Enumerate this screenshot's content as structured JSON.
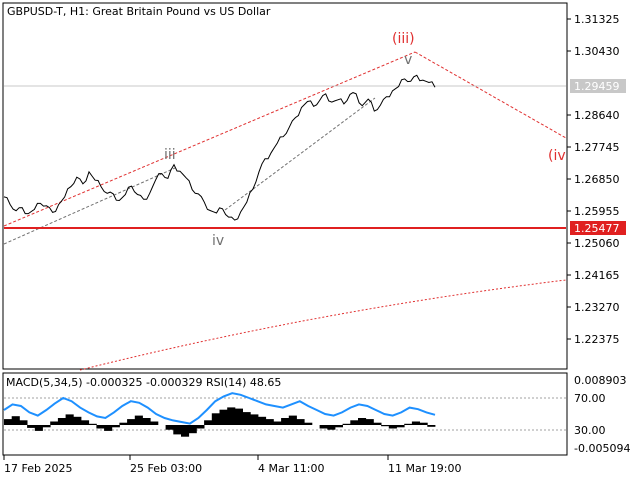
{
  "header": {
    "title": "GBPUSD-T, H1:  Great Britain Pound vs US Dollar"
  },
  "indicator": {
    "label": "MACD(5,34,5) -0.000325 -0.000329 RSI(14) 48.65"
  },
  "colors": {
    "price_line": "#000000",
    "support_line": "#e02020",
    "channel_red": "#e03030",
    "channel_gray": "#707070",
    "current_price_box": "#c8c8c8",
    "support_box": "#e02020",
    "rsi_line": "#1e90ff",
    "macd_hist": "#000000"
  },
  "chart_data": {
    "type": "line",
    "title": "GBPUSD-T, H1:  Great Britain Pound vs US Dollar",
    "xlabel": "",
    "ylabel": "",
    "ylim": [
      1.2175,
      1.3185
    ],
    "y_ticks": [
      "1.31325",
      "1.30430",
      "1.28640",
      "1.27745",
      "1.26850",
      "1.25955",
      "1.25060",
      "1.24165",
      "1.23270",
      "1.22375"
    ],
    "x_ticks": [
      "17 Feb 2025",
      "25 Feb 03:00",
      "4 Mar 11:00",
      "11 Mar 19:00"
    ],
    "current_price": "1.29459",
    "support_level": "1.25477",
    "wave_labels": [
      "(iii)",
      "v",
      "iii",
      "iv",
      "(iv"
    ],
    "price_series": [
      1.263,
      1.2612,
      1.2598,
      1.261,
      1.2585,
      1.26,
      1.262,
      1.2605,
      1.259,
      1.2615,
      1.264,
      1.266,
      1.269,
      1.2675,
      1.27,
      1.268,
      1.2665,
      1.265,
      1.264,
      1.2625,
      1.2645,
      1.266,
      1.264,
      1.263,
      1.265,
      1.268,
      1.27,
      1.269,
      1.272,
      1.2705,
      1.269,
      1.266,
      1.264,
      1.262,
      1.26,
      1.2585,
      1.26,
      1.258,
      1.2575,
      1.259,
      1.262,
      1.266,
      1.27,
      1.274,
      1.276,
      1.279,
      1.28,
      1.283,
      1.286,
      1.288,
      1.29,
      1.289,
      1.291,
      1.292,
      1.29,
      1.291,
      1.289,
      1.292,
      1.2925,
      1.2895,
      1.2905,
      1.2875,
      1.2895,
      1.291,
      1.293,
      1.2945,
      1.297,
      1.2955,
      1.2975,
      1.2965,
      1.295,
      1.294
    ],
    "macd_series": [
      0.001,
      0.0015,
      0.0008,
      -0.0005,
      -0.001,
      -0.0004,
      0.0006,
      0.0012,
      0.0018,
      0.0014,
      0.0008,
      0.0002,
      -0.0006,
      -0.001,
      -0.0004,
      0.0004,
      0.001,
      0.0016,
      0.0012,
      0.0006,
      0.0,
      -0.0008,
      -0.0016,
      -0.002,
      -0.0014,
      -0.0006,
      0.0008,
      0.002,
      0.0026,
      0.003,
      0.0028,
      0.0022,
      0.0018,
      0.0014,
      0.001,
      0.0006,
      0.0012,
      0.0016,
      0.001,
      0.0004,
      0.0,
      -0.0006,
      -0.0008,
      -0.0004,
      0.0002,
      0.0008,
      0.0012,
      0.001,
      0.0004,
      -0.0002,
      -0.0006,
      -0.0004,
      0.0002,
      0.0006,
      0.0004,
      -0.0003
    ],
    "rsi_series": [
      55,
      62,
      60,
      52,
      48,
      55,
      63,
      70,
      66,
      58,
      52,
      47,
      45,
      52,
      60,
      66,
      64,
      58,
      50,
      45,
      42,
      40,
      38,
      45,
      55,
      66,
      72,
      76,
      74,
      70,
      66,
      62,
      60,
      58,
      62,
      66,
      60,
      55,
      50,
      48,
      52,
      58,
      62,
      60,
      55,
      50,
      48,
      52,
      58,
      56,
      52,
      49
    ],
    "macd_range": [
      "0.008903",
      "-0.005094"
    ],
    "rsi_levels": [
      "70.00",
      "30.00"
    ]
  }
}
